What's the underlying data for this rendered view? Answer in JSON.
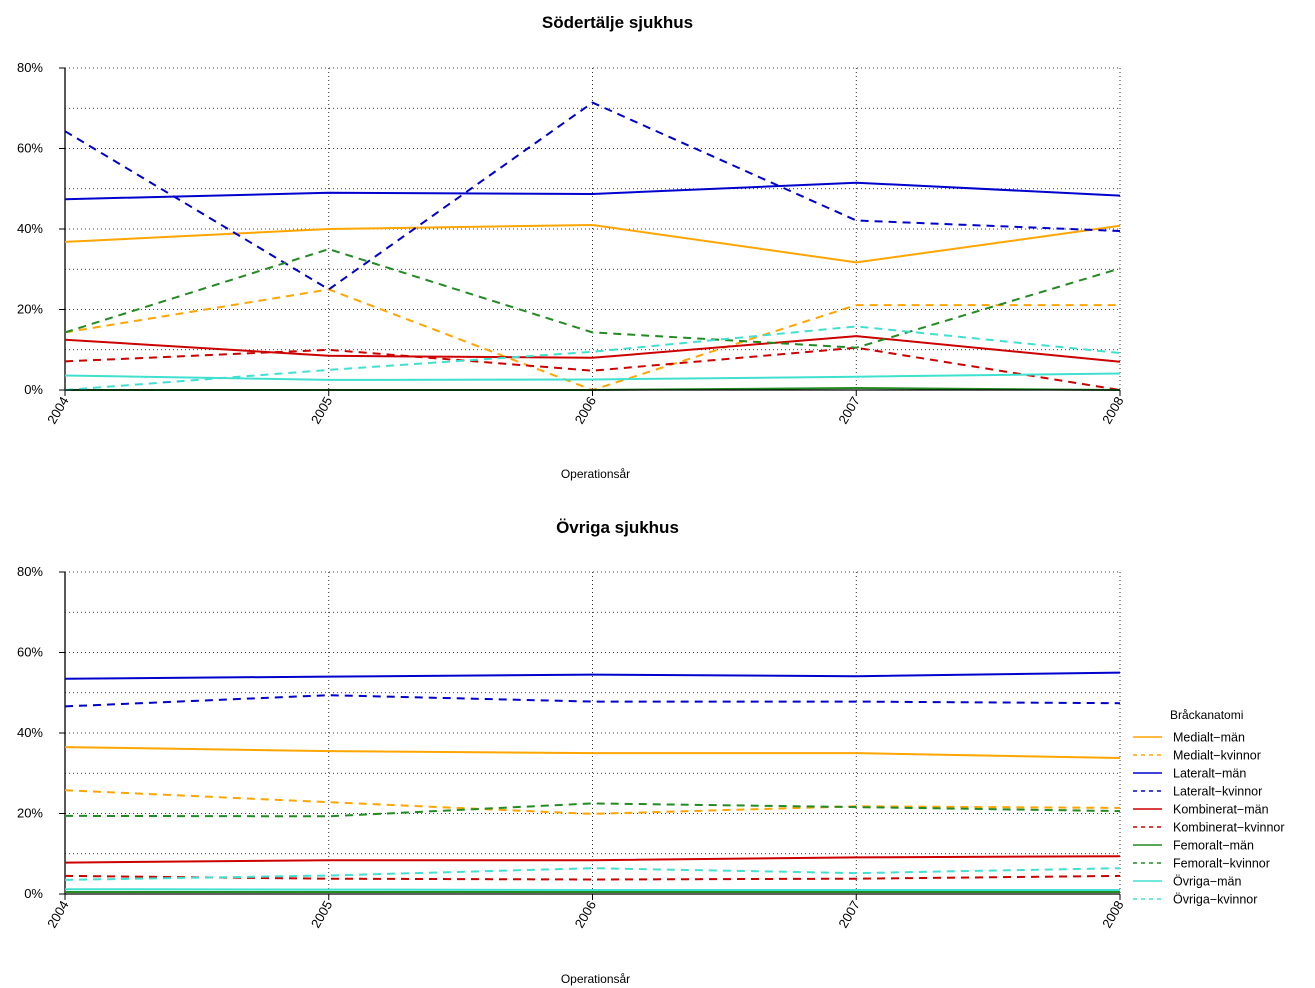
{
  "chart_data": [
    {
      "type": "line",
      "title": "Södertälje sjukhus",
      "xlabel": "Operationsår",
      "ylabel": "",
      "x": [
        "2004",
        "2005",
        "2006",
        "2007",
        "2008"
      ],
      "ylim": [
        0,
        80
      ],
      "yticks": [
        "0%",
        "20%",
        "40%",
        "60%",
        "80%"
      ],
      "grid": true,
      "series": [
        {
          "name": "Medialt−män",
          "color": "#FFA500",
          "dashed": false,
          "values": [
            36.8,
            40.0,
            41.0,
            31.7,
            40.8
          ]
        },
        {
          "name": "Medialt−kvinnor",
          "color": "#FFA500",
          "dashed": true,
          "values": [
            14.3,
            25.0,
            0.0,
            21.1,
            21.1
          ]
        },
        {
          "name": "Lateralt−män",
          "color": "#0000CD",
          "dashed": false,
          "values": [
            47.4,
            49.0,
            48.7,
            51.5,
            48.3
          ]
        },
        {
          "name": "Lateralt−kvinnor",
          "color": "#0000CD",
          "dashed": true,
          "values": [
            64.3,
            25.0,
            71.4,
            42.1,
            39.5
          ]
        },
        {
          "name": "Kombinerat−män",
          "color": "#CD0000",
          "dashed": false,
          "values": [
            12.5,
            8.5,
            8.0,
            13.4,
            7.0
          ]
        },
        {
          "name": "Kombinerat−kvinnor",
          "color": "#CD0000",
          "dashed": true,
          "values": [
            7.1,
            10.0,
            4.8,
            10.5,
            0.0
          ]
        },
        {
          "name": "Femoralt−män",
          "color": "#228B22",
          "dashed": false,
          "values": [
            0.0,
            0.0,
            0.0,
            0.5,
            0.0
          ]
        },
        {
          "name": "Femoralt−kvinnor",
          "color": "#228B22",
          "dashed": true,
          "values": [
            14.3,
            35.0,
            14.3,
            10.5,
            30.2
          ]
        },
        {
          "name": "Övriga−män",
          "color": "#40E0D0",
          "dashed": false,
          "values": [
            3.6,
            2.5,
            2.6,
            3.3,
            4.1
          ]
        },
        {
          "name": "Övriga−kvinnor",
          "color": "#40E0D0",
          "dashed": true,
          "values": [
            0.0,
            5.0,
            9.5,
            15.8,
            9.2
          ]
        }
      ]
    },
    {
      "type": "line",
      "title": "Övriga sjukhus",
      "xlabel": "Operationsår",
      "ylabel": "",
      "x": [
        "2004",
        "2005",
        "2006",
        "2007",
        "2008"
      ],
      "ylim": [
        0,
        80
      ],
      "yticks": [
        "0%",
        "20%",
        "40%",
        "60%",
        "80%"
      ],
      "grid": true,
      "series": [
        {
          "name": "Medialt−män",
          "color": "#FFA500",
          "dashed": false,
          "values": [
            36.5,
            35.5,
            35.0,
            35.0,
            33.8
          ]
        },
        {
          "name": "Medialt−kvinnor",
          "color": "#FFA500",
          "dashed": true,
          "values": [
            25.8,
            22.8,
            19.9,
            21.8,
            21.4
          ]
        },
        {
          "name": "Lateralt−män",
          "color": "#0000CD",
          "dashed": false,
          "values": [
            53.5,
            54.0,
            54.5,
            54.1,
            55.0
          ]
        },
        {
          "name": "Lateralt−kvinnor",
          "color": "#0000CD",
          "dashed": true,
          "values": [
            46.6,
            49.4,
            47.8,
            47.8,
            47.4
          ]
        },
        {
          "name": "Kombinerat−män",
          "color": "#CD0000",
          "dashed": false,
          "values": [
            7.8,
            8.4,
            8.4,
            9.1,
            9.4
          ]
        },
        {
          "name": "Kombinerat−kvinnor",
          "color": "#CD0000",
          "dashed": true,
          "values": [
            4.5,
            3.8,
            3.6,
            3.8,
            4.5
          ]
        },
        {
          "name": "Femoralt−män",
          "color": "#228B22",
          "dashed": false,
          "values": [
            0.5,
            0.5,
            0.5,
            0.5,
            0.5
          ]
        },
        {
          "name": "Femoralt−kvinnor",
          "color": "#228B22",
          "dashed": true,
          "values": [
            19.4,
            19.3,
            22.5,
            21.6,
            20.6
          ]
        },
        {
          "name": "Övriga−män",
          "color": "#40E0D0",
          "dashed": false,
          "values": [
            1.2,
            1.1,
            1.0,
            1.0,
            1.0
          ]
        },
        {
          "name": "Övriga−kvinnor",
          "color": "#40E0D0",
          "dashed": true,
          "values": [
            3.5,
            4.6,
            6.4,
            5.2,
            6.4
          ]
        }
      ]
    }
  ],
  "legend": {
    "title": "Bråckanatomi",
    "position": "right",
    "entries": [
      {
        "label": "Medialt−män",
        "color": "#FFA500",
        "dashed": false
      },
      {
        "label": "Medialt−kvinnor",
        "color": "#FFA500",
        "dashed": true
      },
      {
        "label": "Lateralt−män",
        "color": "#0000CD",
        "dashed": false
      },
      {
        "label": "Lateralt−kvinnor",
        "color": "#0000CD",
        "dashed": true
      },
      {
        "label": "Kombinerat−män",
        "color": "#CD0000",
        "dashed": false
      },
      {
        "label": "Kombinerat−kvinnor",
        "color": "#CD0000",
        "dashed": true
      },
      {
        "label": "Femoralt−män",
        "color": "#228B22",
        "dashed": false
      },
      {
        "label": "Femoralt−kvinnor",
        "color": "#228B22",
        "dashed": true
      },
      {
        "label": "Övriga−män",
        "color": "#40E0D0",
        "dashed": false
      },
      {
        "label": "Övriga−kvinnor",
        "color": "#40E0D0",
        "dashed": true
      }
    ]
  }
}
